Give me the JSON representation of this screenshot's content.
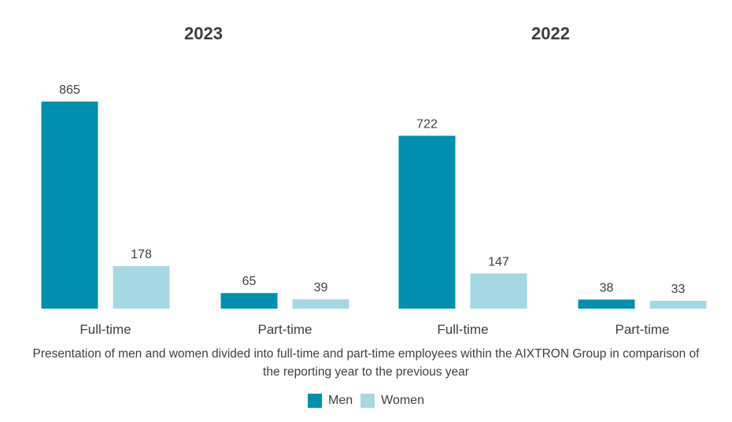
{
  "chart_data": [
    {
      "type": "bar",
      "title": "2023",
      "categories": [
        "Full-time",
        "Part-time"
      ],
      "series": [
        {
          "name": "Men",
          "values": [
            865,
            65
          ]
        },
        {
          "name": "Women",
          "values": [
            178,
            39
          ]
        }
      ],
      "ylim": [
        0,
        865
      ]
    },
    {
      "type": "bar",
      "title": "2022",
      "categories": [
        "Full-time",
        "Part-time"
      ],
      "series": [
        {
          "name": "Men",
          "values": [
            722,
            38
          ]
        },
        {
          "name": "Women",
          "values": [
            147,
            33
          ]
        }
      ],
      "ylim": [
        0,
        865
      ]
    }
  ],
  "caption": {
    "line1": "Presentation of men and women divided into full-time and part-time employees within the AIXTRON Group in comparison of",
    "line2": "the reporting year to the previous year"
  },
  "legend": {
    "items": [
      {
        "label": "Men",
        "color": "#0090ad"
      },
      {
        "label": "Women",
        "color": "#a6d8e4"
      }
    ],
    "placement": "bottom-center"
  },
  "colors": {
    "men": "#0090ad",
    "women": "#a6d8e4",
    "text": "#404040"
  }
}
